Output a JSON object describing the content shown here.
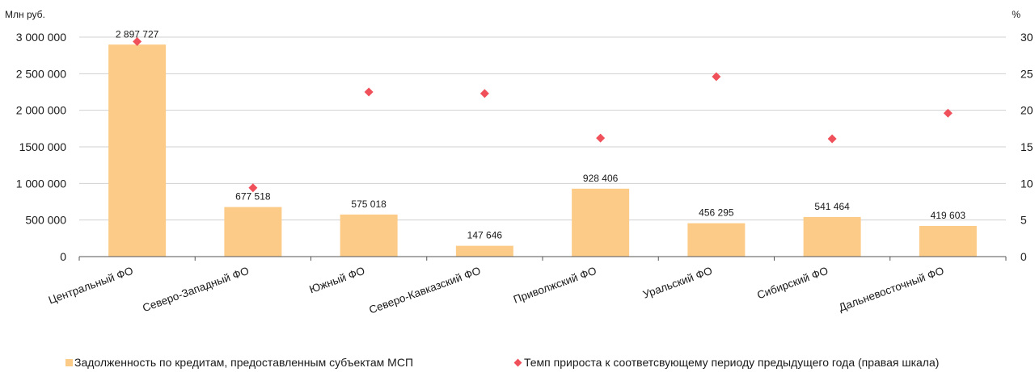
{
  "chart_data": {
    "type": "bar",
    "categories": [
      "Центральный ФО",
      "Северо-Западный ФО",
      "Южный ФО",
      "Северо-Кавказский ФО",
      "Приволжский ФО",
      "Уральский ФО",
      "Сибирский ФО",
      "Дальневосточный ФО"
    ],
    "series": [
      {
        "name": "Задолженность по кредитам, предоставленным субъектам МСП",
        "type": "bar",
        "axis": "left",
        "color": "#FDCB88",
        "values": [
          2897727,
          677518,
          575018,
          147646,
          928406,
          456295,
          541464,
          419603
        ],
        "labels": [
          "2 897 727",
          "677 518",
          "575 018",
          "147 646",
          "928 406",
          "456 295",
          "541 464",
          "419 603"
        ]
      },
      {
        "name": "Темп прироста к соответсвующему периоду предыдущего года (правая шкала)",
        "type": "scatter",
        "marker": "diamond",
        "axis": "right",
        "color": "#F0505A",
        "values": [
          29.4,
          9.4,
          22.5,
          22.3,
          16.2,
          24.6,
          16.1,
          19.6
        ]
      }
    ],
    "left_axis": {
      "unit": "Млн руб.",
      "ylim": [
        0,
        3000000
      ],
      "ticks": [
        0,
        500000,
        1000000,
        1500000,
        2000000,
        2500000,
        3000000
      ],
      "tick_labels": [
        "0",
        "500 000",
        "1 000 000",
        "1500 000",
        "2 000 000",
        "2 500 000",
        "3 000 000"
      ]
    },
    "right_axis": {
      "unit": "%",
      "ylim": [
        0,
        30
      ],
      "ticks": [
        0,
        5,
        10,
        15,
        20,
        25,
        30
      ],
      "tick_labels": [
        "0",
        "5",
        "10",
        "15",
        "20",
        "25",
        "30"
      ]
    },
    "grid": true,
    "legend_position": "bottom",
    "colors": {
      "bar": "#FDCB88",
      "marker": "#F0505A",
      "grid": "#D0D0D0",
      "axis": "#555555"
    }
  }
}
